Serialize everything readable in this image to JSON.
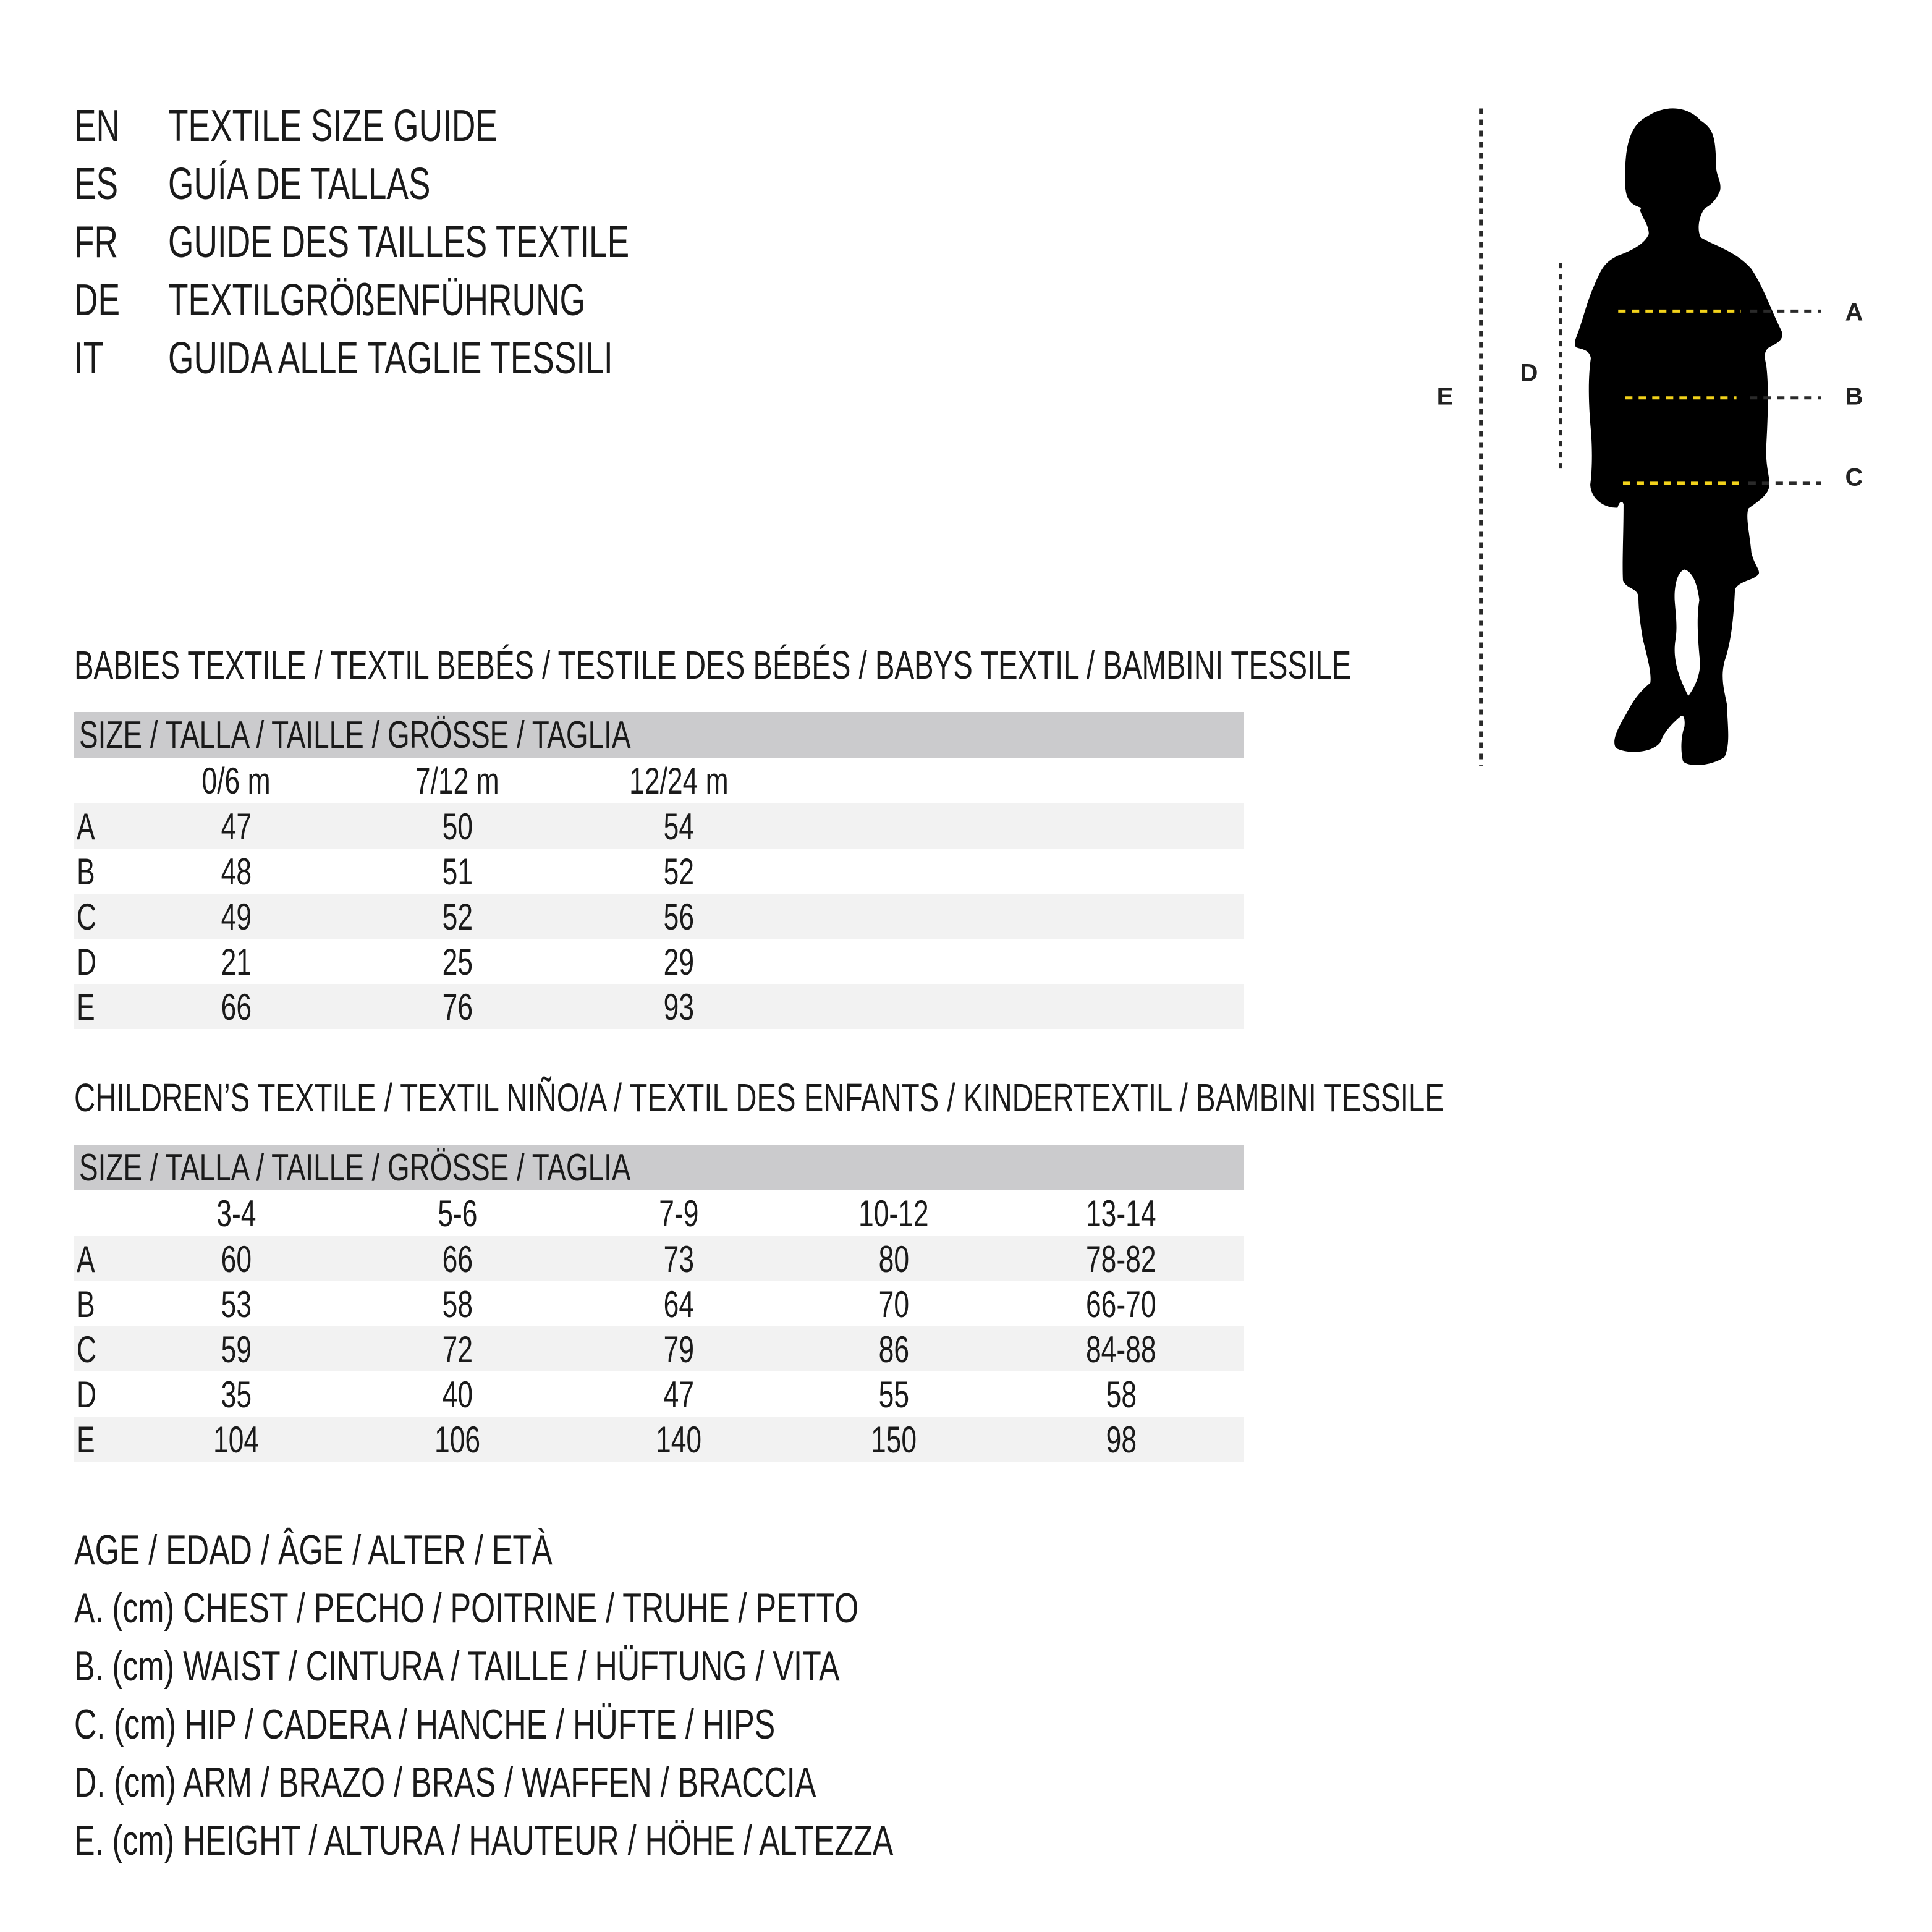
{
  "header": {
    "lines": [
      {
        "code": "EN",
        "title": "TEXTILE SIZE GUIDE"
      },
      {
        "code": "ES",
        "title": "GUÍA DE TALLAS"
      },
      {
        "code": "FR",
        "title": "GUIDE DES TAILLES TEXTILE"
      },
      {
        "code": "DE",
        "title": "TEXTILGRÖßENFÜHRUNG"
      },
      {
        "code": "IT",
        "title": "GUIDA ALLE TAGLIE TESSILI"
      }
    ]
  },
  "babies": {
    "title": "BABIES TEXTILE / TEXTIL BEBÉS / TESTILE DES BÉBÉS / BABYS TEXTIL / BAMBINI TESSILE",
    "size_header": "SIZE / TALLA / TAILLE / GRÖSSE / TAGLIA",
    "columns": [
      "0/6 m",
      "7/12 m",
      "12/24 m"
    ],
    "rows": [
      {
        "label": "A",
        "values": [
          "47",
          "50",
          "54"
        ]
      },
      {
        "label": "B",
        "values": [
          "48",
          "51",
          "52"
        ]
      },
      {
        "label": "C",
        "values": [
          "49",
          "52",
          "56"
        ]
      },
      {
        "label": "D",
        "values": [
          "21",
          "25",
          "29"
        ]
      },
      {
        "label": "E",
        "values": [
          "66",
          "76",
          "93"
        ]
      }
    ]
  },
  "children": {
    "title": "CHILDREN’S TEXTILE / TEXTIL NIÑO/A / TEXTIL DES ENFANTS / KINDERTEXTIL / BAMBINI TESSILE",
    "size_header": "SIZE / TALLA / TAILLE / GRÖSSE / TAGLIA",
    "columns": [
      "3-4",
      "5-6",
      "7-9",
      "10-12",
      "13-14"
    ],
    "rows": [
      {
        "label": "A",
        "values": [
          "60",
          "66",
          "73",
          "80",
          "78-82"
        ]
      },
      {
        "label": "B",
        "values": [
          "53",
          "58",
          "64",
          "70",
          "66-70"
        ]
      },
      {
        "label": "C",
        "values": [
          "59",
          "72",
          "79",
          "86",
          "84-88"
        ]
      },
      {
        "label": "D",
        "values": [
          "35",
          "40",
          "47",
          "55",
          "58"
        ]
      },
      {
        "label": "E",
        "values": [
          "104",
          "106",
          "140",
          "150",
          "98"
        ]
      }
    ]
  },
  "legend": [
    "AGE / EDAD / ÂGE / ALTER / ETÀ",
    "A. (cm) CHEST / PECHO / POITRINE / TRUHE / PETTO",
    "B. (cm) WAIST / CINTURA / TAILLE / HÜFTUNG / VITA",
    "C. (cm) HIP / CADERA / HANCHE / HÜFTE / HIPS",
    "D. (cm) ARM / BRAZO / BRAS / WAFFEN / BRACCIA",
    "E. (cm) HEIGHT / ALTURA / HAUTEUR / HÖHE / ALTEZZA"
  ],
  "figure": {
    "labels": {
      "a": "A",
      "b": "B",
      "c": "C",
      "d": "D",
      "e": "E"
    },
    "colors": {
      "silhouette": "#000000",
      "measure_line": "#f2d21b",
      "guide_line": "#2a2a2a"
    }
  }
}
